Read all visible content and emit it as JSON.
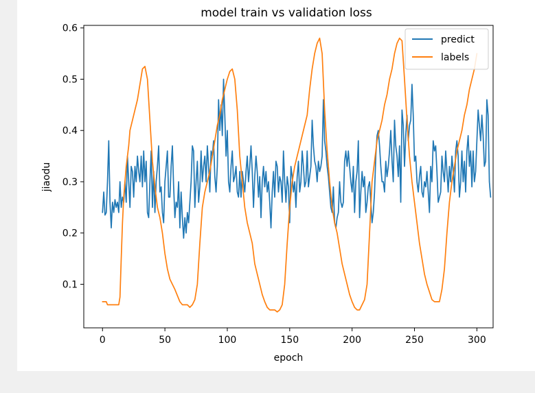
{
  "chart_data": {
    "type": "line",
    "title": "model train vs validation loss",
    "xlabel": "epoch",
    "ylabel": "jiaodu",
    "xlim": [
      -15,
      313
    ],
    "ylim": [
      0.015,
      0.605
    ],
    "xticks": [
      0,
      50,
      100,
      150,
      200,
      250,
      300
    ],
    "yticks": [
      0.1,
      0.2,
      0.3,
      0.4,
      0.5,
      0.6
    ],
    "x_tick_labels": [
      "0",
      "50",
      "100",
      "150",
      "200",
      "250",
      "300"
    ],
    "y_tick_labels": [
      "0.1",
      "0.2",
      "0.3",
      "0.4",
      "0.5",
      "0.6"
    ],
    "grid": false,
    "legend_position": "upper right",
    "series": [
      {
        "name": "predict",
        "color": "#1f77b4",
        "x_step": 1,
        "values": [
          0.24,
          0.28,
          0.235,
          0.24,
          0.3,
          0.38,
          0.26,
          0.21,
          0.26,
          0.24,
          0.265,
          0.25,
          0.26,
          0.24,
          0.3,
          0.25,
          0.27,
          0.26,
          0.3,
          0.26,
          0.35,
          0.3,
          0.25,
          0.33,
          0.32,
          0.27,
          0.33,
          0.3,
          0.35,
          0.32,
          0.3,
          0.35,
          0.29,
          0.36,
          0.3,
          0.34,
          0.24,
          0.23,
          0.3,
          0.36,
          0.25,
          0.32,
          0.24,
          0.3,
          0.33,
          0.37,
          0.28,
          0.29,
          0.24,
          0.22,
          0.3,
          0.33,
          0.36,
          0.27,
          0.27,
          0.33,
          0.37,
          0.29,
          0.23,
          0.26,
          0.25,
          0.3,
          0.21,
          0.28,
          0.23,
          0.19,
          0.23,
          0.2,
          0.24,
          0.22,
          0.26,
          0.3,
          0.37,
          0.36,
          0.25,
          0.3,
          0.34,
          0.26,
          0.29,
          0.36,
          0.3,
          0.33,
          0.35,
          0.3,
          0.37,
          0.33,
          0.28,
          0.36,
          0.35,
          0.38,
          0.31,
          0.28,
          0.33,
          0.46,
          0.4,
          0.45,
          0.39,
          0.5,
          0.43,
          0.35,
          0.4,
          0.3,
          0.28,
          0.33,
          0.36,
          0.3,
          0.31,
          0.33,
          0.28,
          0.27,
          0.32,
          0.27,
          0.32,
          0.3,
          0.28,
          0.32,
          0.35,
          0.3,
          0.33,
          0.37,
          0.32,
          0.25,
          0.31,
          0.35,
          0.32,
          0.27,
          0.31,
          0.23,
          0.3,
          0.33,
          0.29,
          0.32,
          0.28,
          0.3,
          0.26,
          0.21,
          0.28,
          0.32,
          0.27,
          0.34,
          0.33,
          0.28,
          0.31,
          0.3,
          0.26,
          0.36,
          0.3,
          0.26,
          0.31,
          0.29,
          0.22,
          0.33,
          0.31,
          0.28,
          0.3,
          0.25,
          0.31,
          0.34,
          0.28,
          0.3,
          0.36,
          0.33,
          0.29,
          0.3,
          0.36,
          0.29,
          0.31,
          0.33,
          0.42,
          0.37,
          0.34,
          0.33,
          0.3,
          0.34,
          0.32,
          0.33,
          0.35,
          0.46,
          0.38,
          0.36,
          0.33,
          0.31,
          0.28,
          0.25,
          0.24,
          0.29,
          0.22,
          0.21,
          0.23,
          0.24,
          0.3,
          0.26,
          0.25,
          0.26,
          0.34,
          0.36,
          0.33,
          0.36,
          0.33,
          0.3,
          0.28,
          0.33,
          0.24,
          0.3,
          0.32,
          0.38,
          0.23,
          0.28,
          0.32,
          0.29,
          0.31,
          0.24,
          0.26,
          0.29,
          0.3,
          0.26,
          0.22,
          0.24,
          0.28,
          0.35,
          0.39,
          0.4,
          0.37,
          0.33,
          0.3,
          0.3,
          0.28,
          0.34,
          0.31,
          0.33,
          0.36,
          0.4,
          0.34,
          0.3,
          0.42,
          0.37,
          0.35,
          0.31,
          0.37,
          0.26,
          0.44,
          0.41,
          0.33,
          0.39,
          0.43,
          0.38,
          0.41,
          0.42,
          0.49,
          0.43,
          0.34,
          0.35,
          0.3,
          0.28,
          0.31,
          0.33,
          0.28,
          0.27,
          0.3,
          0.29,
          0.32,
          0.28,
          0.24,
          0.33,
          0.3,
          0.38,
          0.36,
          0.37,
          0.32,
          0.26,
          0.27,
          0.28,
          0.35,
          0.32,
          0.3,
          0.36,
          0.32,
          0.28,
          0.33,
          0.3,
          0.35,
          0.32,
          0.28,
          0.36,
          0.38,
          0.35,
          0.27,
          0.3,
          0.36,
          0.3,
          0.34,
          0.28,
          0.36,
          0.39,
          0.33,
          0.36,
          0.29,
          0.36,
          0.3,
          0.32,
          0.38,
          0.44,
          0.41,
          0.38,
          0.43,
          0.39,
          0.33,
          0.34,
          0.46,
          0.43,
          0.3,
          0.27
        ]
      },
      {
        "name": "labels",
        "color": "#ff7f0e",
        "x": [
          0,
          1,
          2,
          3,
          4,
          5,
          6,
          7,
          8,
          9,
          10,
          11,
          12,
          13,
          14,
          15,
          16,
          17,
          18,
          19,
          20,
          21,
          22,
          24,
          26,
          28,
          30,
          32,
          34,
          36,
          38,
          40,
          42,
          44,
          46,
          48,
          50,
          52,
          54,
          56,
          58,
          60,
          62,
          64,
          66,
          68,
          70,
          72,
          74,
          76,
          78,
          80,
          82,
          84,
          86,
          88,
          90,
          92,
          94,
          96,
          98,
          100,
          102,
          104,
          106,
          108,
          110,
          112,
          114,
          116,
          118,
          120,
          122,
          124,
          126,
          128,
          130,
          132,
          134,
          136,
          138,
          140,
          142,
          144,
          146,
          148,
          150,
          152,
          154,
          156,
          158,
          160,
          162,
          164,
          166,
          168,
          170,
          172,
          174,
          176,
          178,
          180,
          182,
          184,
          186,
          188,
          190,
          192,
          194,
          196,
          198,
          200,
          202,
          204,
          206,
          208,
          210,
          212,
          214,
          216,
          218,
          220,
          222,
          224,
          226,
          228,
          230,
          232,
          234,
          236,
          238,
          240,
          242,
          244,
          246,
          248,
          250,
          252,
          254,
          256,
          258,
          260,
          262,
          264,
          266,
          268,
          270,
          272,
          274,
          276,
          278,
          280,
          282,
          284,
          286,
          288,
          290,
          292,
          294,
          296,
          298,
          300
        ],
        "values": [
          0.066,
          0.066,
          0.066,
          0.066,
          0.06,
          0.06,
          0.06,
          0.06,
          0.06,
          0.06,
          0.06,
          0.06,
          0.06,
          0.06,
          0.075,
          0.15,
          0.22,
          0.27,
          0.3,
          0.33,
          0.35,
          0.37,
          0.4,
          0.42,
          0.44,
          0.46,
          0.49,
          0.52,
          0.525,
          0.5,
          0.42,
          0.34,
          0.29,
          0.25,
          0.23,
          0.2,
          0.16,
          0.13,
          0.11,
          0.1,
          0.09,
          0.078,
          0.066,
          0.06,
          0.06,
          0.06,
          0.055,
          0.06,
          0.07,
          0.1,
          0.18,
          0.25,
          0.28,
          0.3,
          0.32,
          0.35,
          0.38,
          0.41,
          0.43,
          0.46,
          0.48,
          0.5,
          0.515,
          0.52,
          0.5,
          0.44,
          0.35,
          0.3,
          0.25,
          0.22,
          0.2,
          0.18,
          0.14,
          0.12,
          0.1,
          0.08,
          0.066,
          0.055,
          0.05,
          0.05,
          0.05,
          0.046,
          0.05,
          0.06,
          0.1,
          0.18,
          0.25,
          0.3,
          0.33,
          0.35,
          0.37,
          0.39,
          0.41,
          0.43,
          0.48,
          0.52,
          0.55,
          0.57,
          0.58,
          0.55,
          0.44,
          0.36,
          0.3,
          0.25,
          0.22,
          0.2,
          0.17,
          0.14,
          0.12,
          0.1,
          0.08,
          0.066,
          0.055,
          0.05,
          0.05,
          0.06,
          0.07,
          0.1,
          0.2,
          0.3,
          0.34,
          0.38,
          0.4,
          0.42,
          0.45,
          0.47,
          0.5,
          0.52,
          0.55,
          0.57,
          0.58,
          0.575,
          0.5,
          0.42,
          0.35,
          0.3,
          0.26,
          0.22,
          0.18,
          0.15,
          0.12,
          0.1,
          0.085,
          0.07,
          0.066,
          0.066,
          0.066,
          0.09,
          0.13,
          0.2,
          0.26,
          0.3,
          0.33,
          0.36,
          0.38,
          0.4,
          0.43,
          0.45,
          0.48,
          0.5,
          0.52,
          0.55
        ]
      }
    ]
  }
}
